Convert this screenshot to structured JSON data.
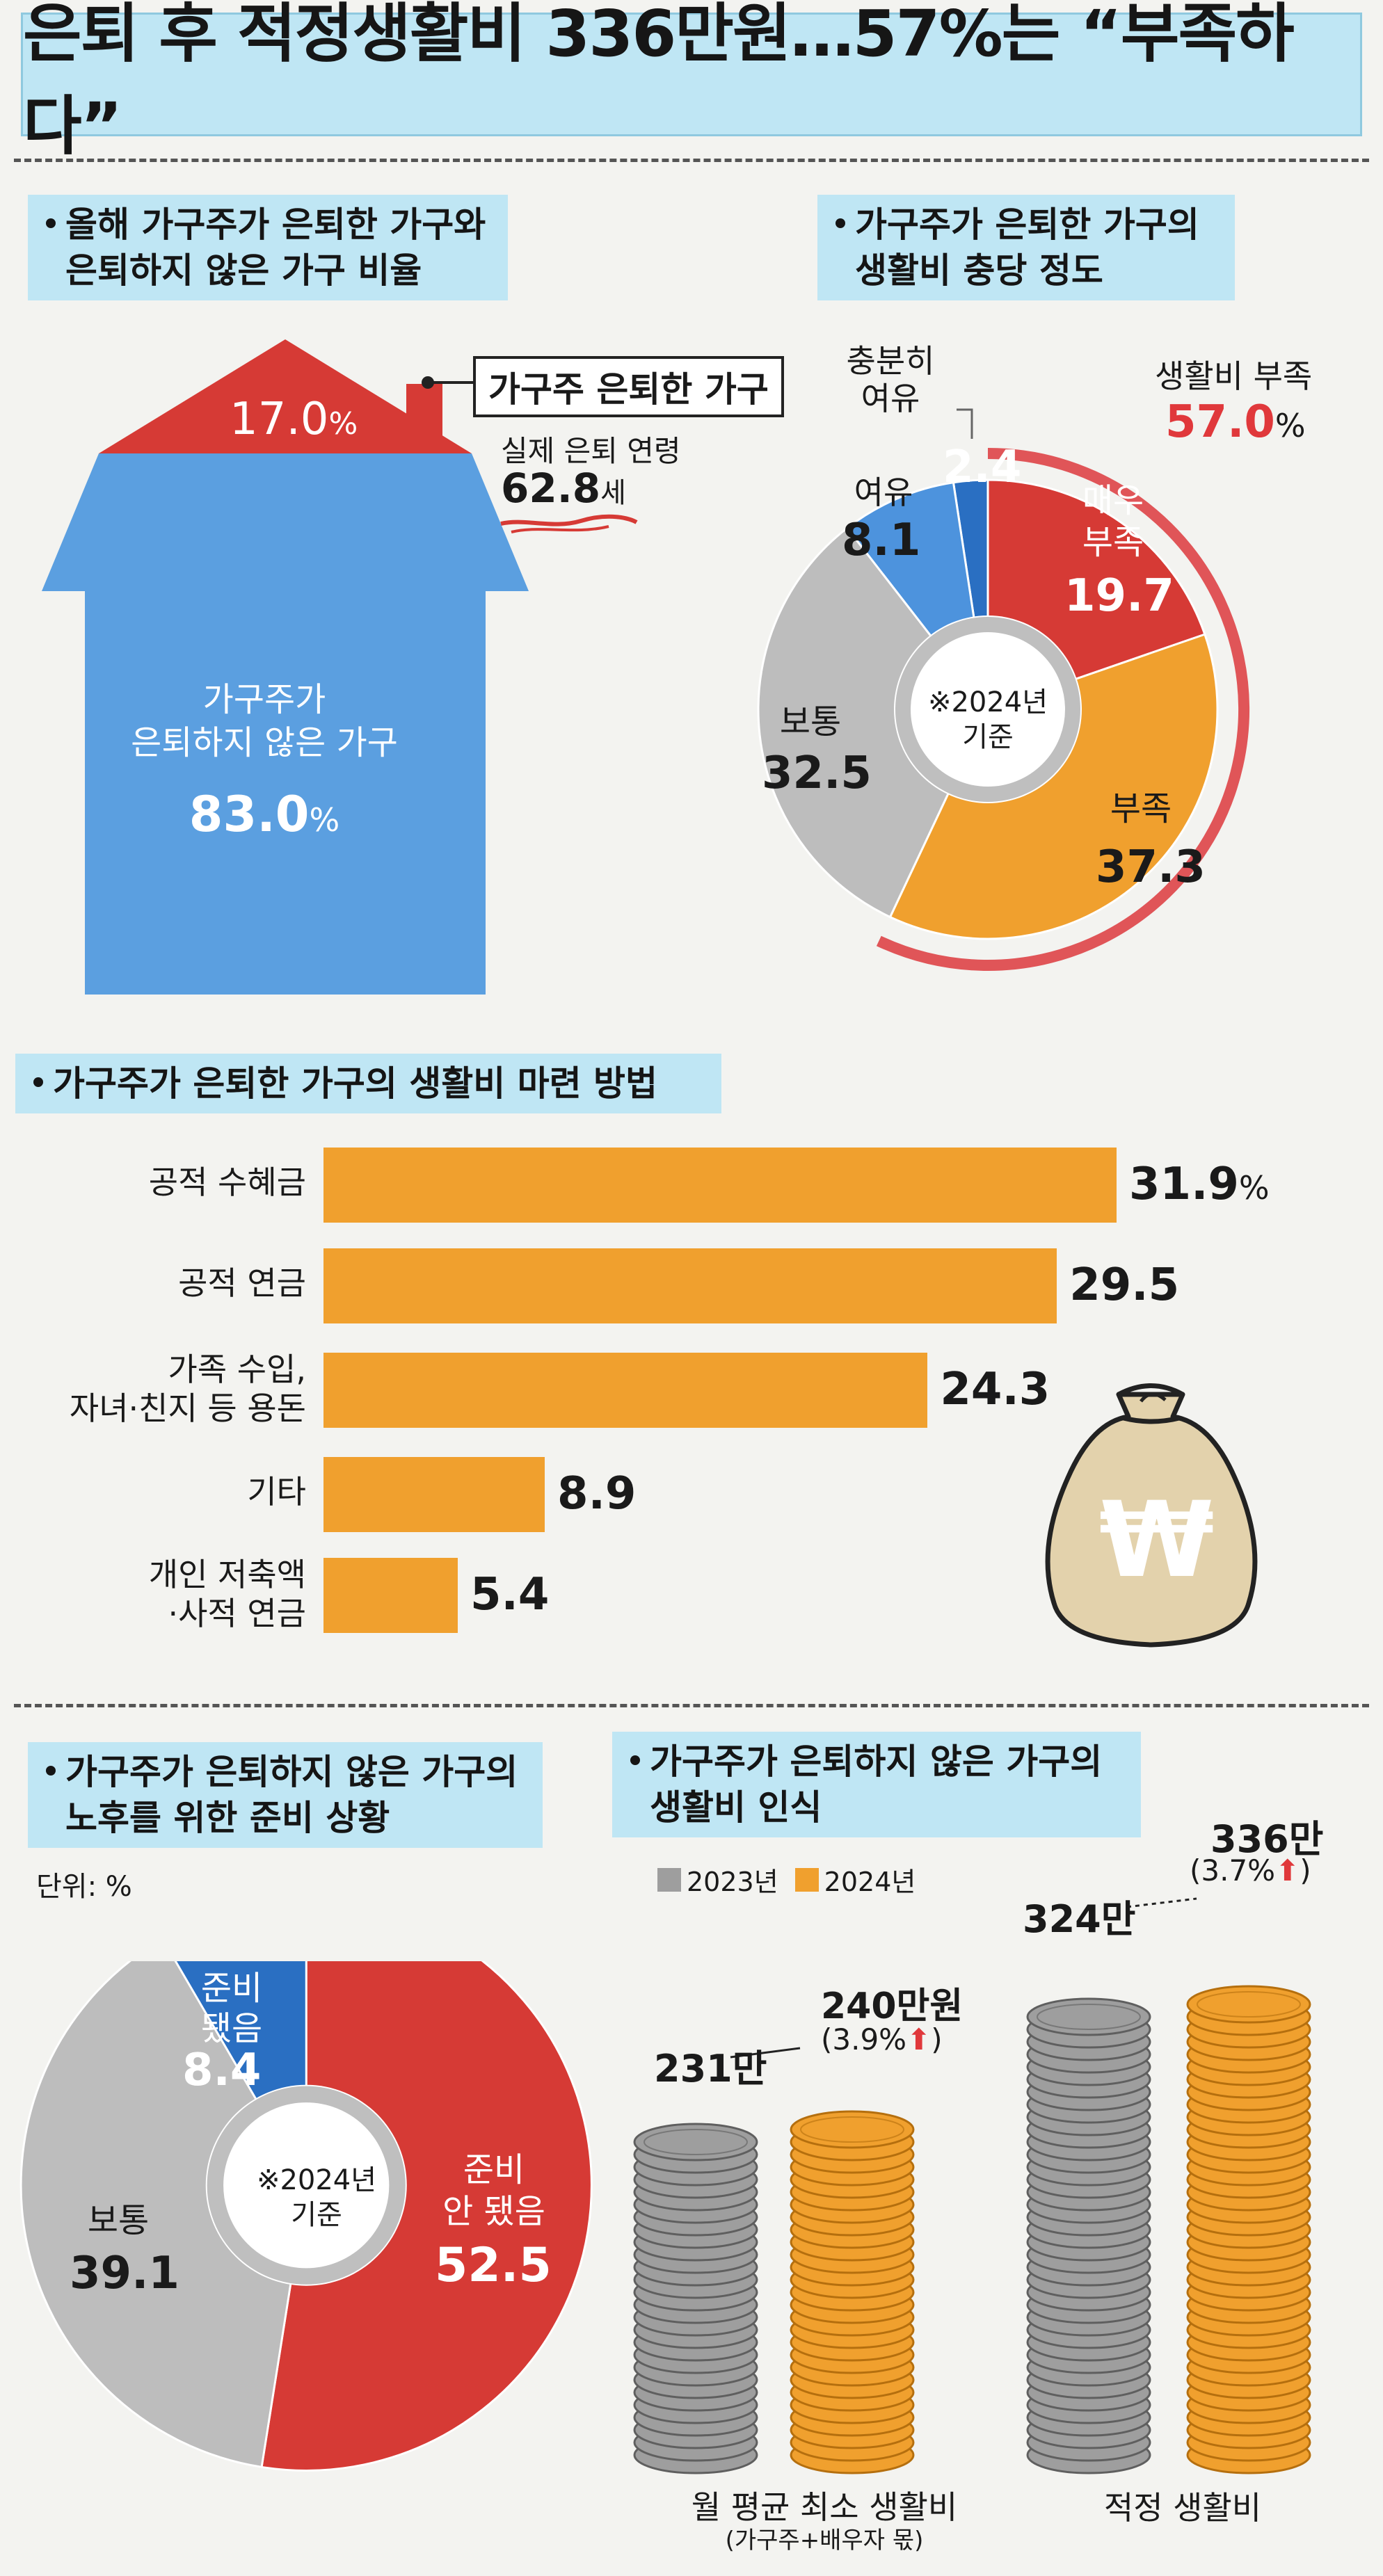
{
  "title": "은퇴 후 적정생활비 336만원…57%는 “부족하다”",
  "house": {
    "section_title_1": "올해 가구주가 은퇴한 가구와",
    "section_title_2": "은퇴하지 않은 가구 비율",
    "retired_label": "가구주 은퇴한 가구",
    "retired_value": "17.0",
    "retired_unit": "%",
    "actual_age_label": "실제 은퇴 연령",
    "actual_age_value": "62.8",
    "actual_age_unit": "세",
    "not_retired_label_1": "가구주가",
    "not_retired_label_2": "은퇴하지 않은 가구",
    "not_retired_value": "83.0",
    "not_retired_unit": "%",
    "colors": {
      "roof": "#d63a35",
      "body": "#5b9fe0"
    }
  },
  "donut1": {
    "section_title_1": "가구주가 은퇴한 가구의",
    "section_title_2": "생활비 충당 정도",
    "center_1": "※2024년",
    "center_2": "기준",
    "shortage_label": "생활비 부족",
    "shortage_value": "57.0",
    "shortage_unit": "%",
    "labels": {
      "very_short_1": "매우",
      "very_short_2": "부족",
      "very_short_val": "19.7",
      "short": "부족",
      "short_val": "37.3",
      "normal": "보통",
      "normal_val": "32.5",
      "spare": "여유",
      "spare_val": "8.1",
      "plenty_1": "충분히",
      "plenty_2": "여유",
      "plenty_val": "2.4"
    }
  },
  "bars": {
    "section_title": "가구주가 은퇴한 가구의 생활비 마련 방법",
    "rows": [
      {
        "label_1": "공적 수혜금",
        "label_2": "",
        "value": "31.9",
        "unit": "%"
      },
      {
        "label_1": "공적 연금",
        "label_2": "",
        "value": "29.5",
        "unit": ""
      },
      {
        "label_1": "가족 수입,",
        "label_2": "자녀·친지 등 용돈",
        "value": "24.3",
        "unit": ""
      },
      {
        "label_1": "기타",
        "label_2": "",
        "value": "8.9",
        "unit": ""
      },
      {
        "label_1": "개인 저축액",
        "label_2": "·사적 연금",
        "value": "5.4",
        "unit": ""
      }
    ],
    "money_symbol": "₩"
  },
  "donut2": {
    "section_title_1": "가구주가 은퇴하지 않은 가구의",
    "section_title_2": "노후를 위한 준비 상황",
    "unit": "단위: %",
    "center_1": "※2024년",
    "center_2": "기준",
    "labels": {
      "ready_1": "준비",
      "ready_2": "됐음",
      "ready_val": "8.4",
      "not_ready_1": "준비",
      "not_ready_2": "안 됐음",
      "not_ready_val": "52.5",
      "normal": "보통",
      "normal_val": "39.1"
    }
  },
  "coins": {
    "section_title_1": "가구주가 은퇴하지 않은 가구의",
    "section_title_2": "생활비 인식",
    "legend_2023": "2023년",
    "legend_2024": "2024년",
    "min_2023": "231만",
    "min_2024": "240만원",
    "min_change": "(3.9%",
    "min_change_close": ")",
    "adequate_2023": "324만",
    "adequate_2024": "336만",
    "adequate_change": "(3.7%",
    "adequate_change_close": ")",
    "min_caption_1": "월 평균 최소 생활비",
    "min_caption_2": "(가구주+배우자 몫)",
    "adequate_caption": "적정 생활비",
    "up_arrow": "⬆"
  },
  "chart_data": [
    {
      "type": "pie",
      "title": "가구주가 은퇴한 가구와 은퇴하지 않은 가구 비율",
      "categories": [
        "가구주 은퇴한 가구",
        "가구주가 은퇴하지 않은 가구"
      ],
      "values": [
        17.0,
        83.0
      ]
    },
    {
      "type": "pie",
      "title": "가구주가 은퇴한 가구의 생활비 충당 정도",
      "categories": [
        "매우 부족",
        "부족",
        "보통",
        "여유",
        "충분히 여유"
      ],
      "values": [
        19.7,
        37.3,
        32.5,
        8.1,
        2.4
      ],
      "colors": [
        "#d63a35",
        "#f0a02e",
        "#bdbdbd",
        "#4d93dd",
        "#2a6fc2"
      ]
    },
    {
      "type": "bar",
      "title": "가구주가 은퇴한 가구의 생활비 마련 방법",
      "categories": [
        "공적 수혜금",
        "공적 연금",
        "가족 수입, 자녀·친지 등 용돈",
        "기타",
        "개인 저축액·사적 연금"
      ],
      "values": [
        31.9,
        29.5,
        24.3,
        8.9,
        5.4
      ],
      "xlim": [
        0,
        35
      ]
    },
    {
      "type": "pie",
      "title": "가구주가 은퇴하지 않은 가구의 노후를 위한 준비 상황",
      "categories": [
        "준비 안 됐음",
        "보통",
        "준비 됐음"
      ],
      "values": [
        52.5,
        39.1,
        8.4
      ],
      "colors": [
        "#d63a35",
        "#bdbdbd",
        "#2a6fc2"
      ]
    },
    {
      "type": "bar",
      "title": "가구주가 은퇴하지 않은 가구의 생활비 인식",
      "categories": [
        "월 평균 최소 생활비",
        "적정 생활비"
      ],
      "series": [
        {
          "name": "2023년",
          "values": [
            231,
            324
          ],
          "color": "#9e9e9e"
        },
        {
          "name": "2024년",
          "values": [
            240,
            336
          ],
          "color": "#f0a02e"
        }
      ],
      "unit": "만원"
    }
  ]
}
